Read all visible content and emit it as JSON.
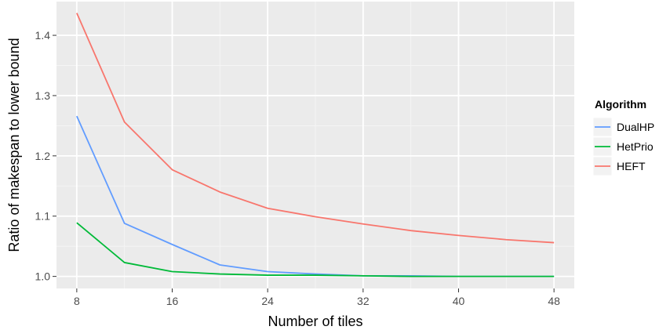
{
  "chart_data": {
    "type": "line",
    "title": "",
    "xlabel": "Number of tiles",
    "ylabel": "Ratio of makespan to lower bound",
    "xlim": [
      6.3,
      49.7
    ],
    "ylim": [
      0.98,
      1.456
    ],
    "xticks": [
      8,
      16,
      24,
      32,
      40,
      48
    ],
    "xtick_labels": [
      "8",
      "16",
      "24",
      "32",
      "40",
      "48"
    ],
    "yticks": [
      1.0,
      1.1,
      1.2,
      1.3,
      1.4
    ],
    "ytick_labels": [
      "1.0",
      "1.1",
      "1.2",
      "1.3",
      "1.4"
    ],
    "grid": true,
    "legend": {
      "title": "Algorithm",
      "placement": "right",
      "order": [
        "DualHP",
        "HetPrio",
        "HEFT"
      ]
    },
    "x": [
      8,
      12,
      16,
      20,
      24,
      28,
      32,
      36,
      40,
      44,
      48
    ],
    "series": [
      {
        "name": "HEFT",
        "color": "#F8766D",
        "values": [
          1.437,
          1.256,
          1.177,
          1.14,
          1.113,
          1.099,
          1.087,
          1.076,
          1.068,
          1.061,
          1.056
        ]
      },
      {
        "name": "DualHP",
        "color": "#619CFF",
        "values": [
          1.266,
          1.088,
          1.053,
          1.019,
          1.008,
          1.004,
          1.001,
          1.001,
          1.0,
          1.0,
          1.0
        ]
      },
      {
        "name": "HetPrio",
        "color": "#00BA38",
        "values": [
          1.089,
          1.023,
          1.008,
          1.004,
          1.002,
          1.002,
          1.001,
          1.0,
          1.0,
          1.0,
          1.0
        ]
      }
    ]
  }
}
